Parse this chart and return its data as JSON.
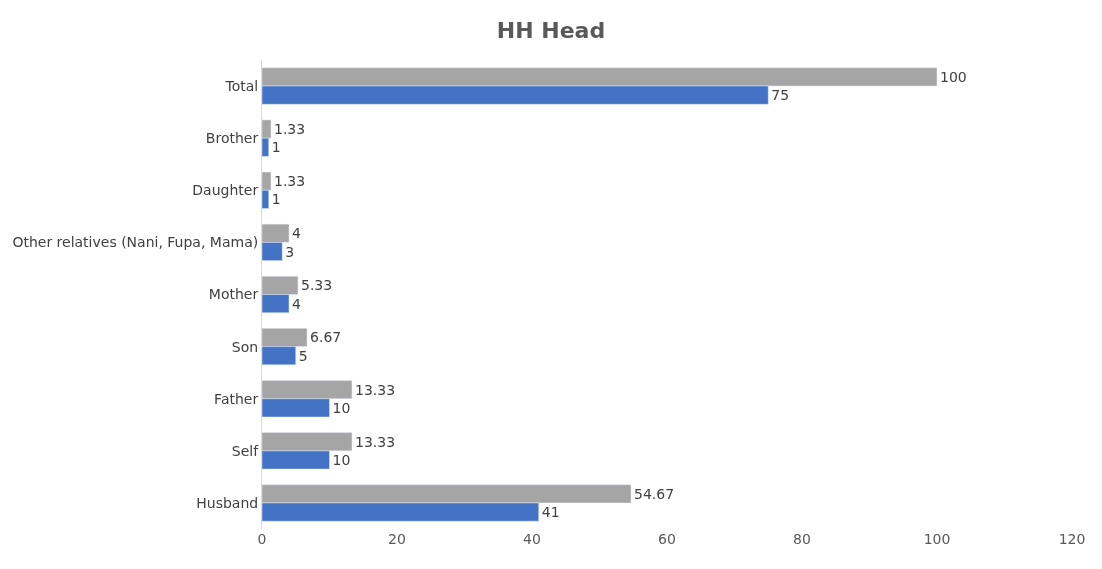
{
  "chart_data": {
    "type": "bar",
    "title": "HH Head",
    "orientation": "horizontal",
    "categories": [
      "Total",
      "Brother",
      "Daughter",
      "Other relatives (Nani, Fupa, Mama)",
      "Mother",
      "Son",
      "Father",
      "Self",
      "Husband"
    ],
    "series": [
      {
        "color": "#a5a5a5",
        "values": [
          100,
          1.33,
          1.33,
          4,
          5.33,
          6.67,
          13.33,
          13.33,
          54.67
        ]
      },
      {
        "color": "#4472c4",
        "values": [
          75,
          1,
          1,
          3,
          4,
          5,
          10,
          10,
          41
        ]
      }
    ],
    "xlim": [
      0,
      120
    ],
    "xticks": [
      0,
      20,
      40,
      60,
      80,
      100,
      120
    ],
    "grid": false,
    "data_labels": true
  }
}
